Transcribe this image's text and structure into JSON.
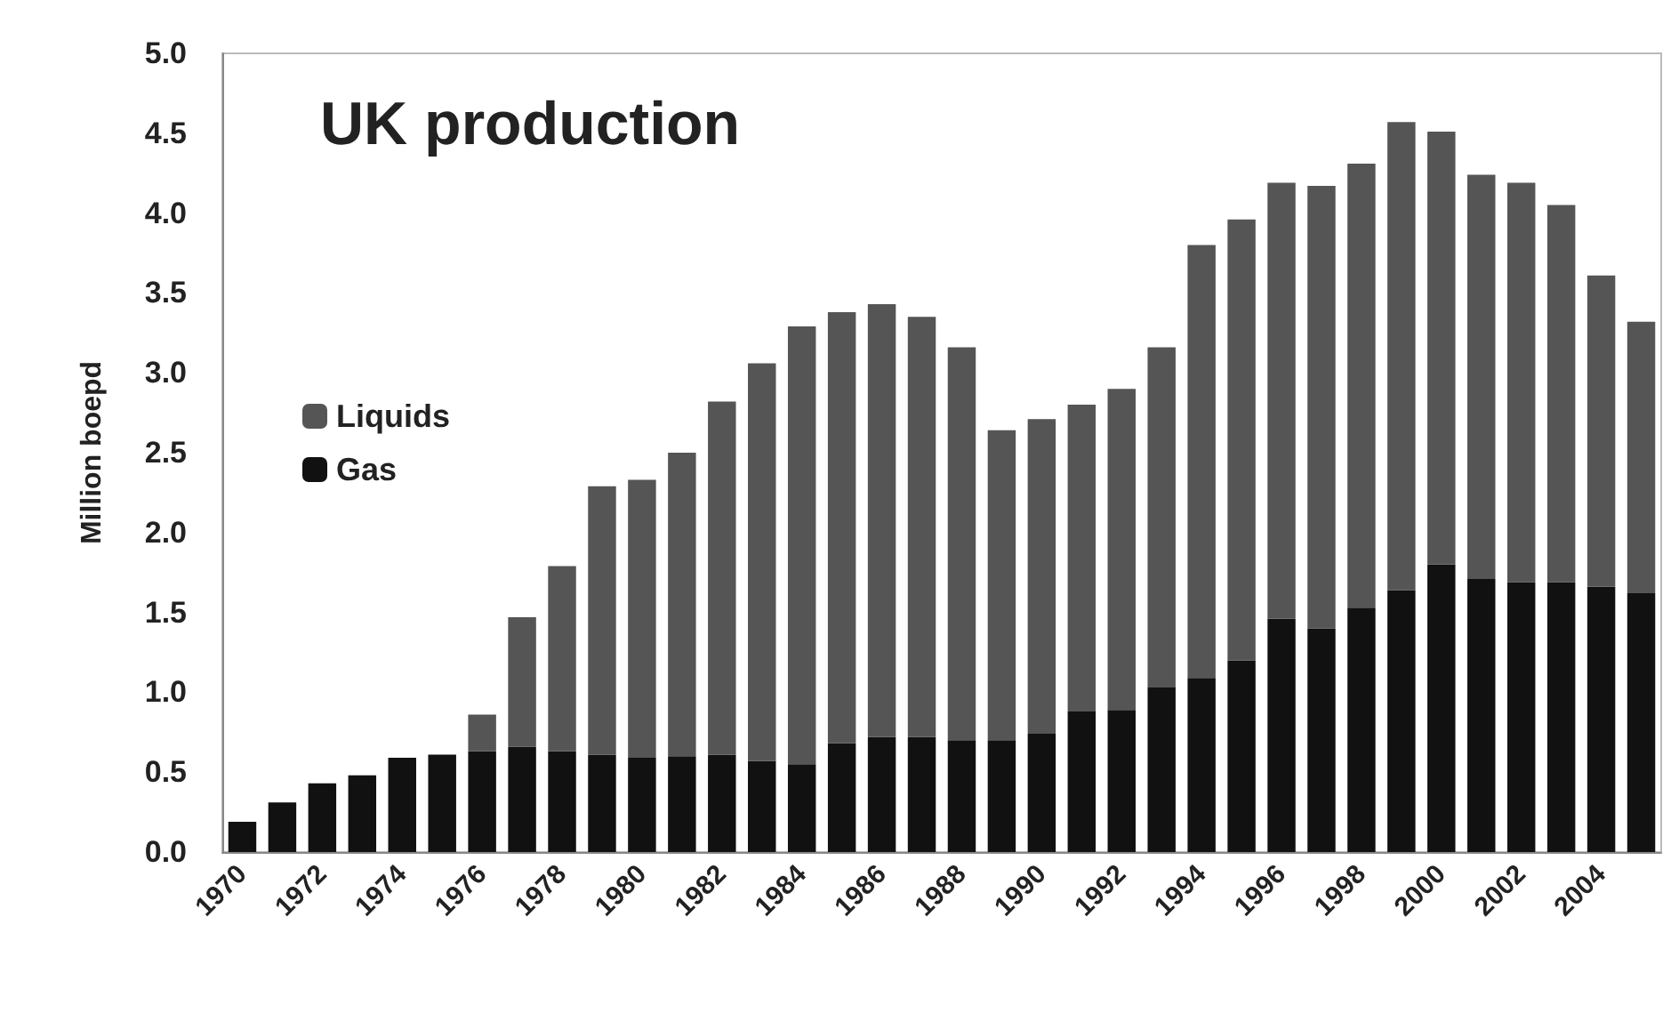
{
  "chart_data": {
    "type": "bar",
    "title": "UK production",
    "ylabel": "Million boepd",
    "categories": [
      "1970",
      null,
      "1972",
      null,
      "1974",
      null,
      "1976",
      null,
      "1978",
      null,
      "1980",
      null,
      "1982",
      null,
      "1984",
      null,
      "1986",
      null,
      "1988",
      null,
      "1990",
      null,
      "1992",
      null,
      "1994",
      null,
      "1996",
      null,
      "1998",
      null,
      "2000",
      null,
      "2002",
      null,
      "2004",
      null
    ],
    "stacked": true,
    "series": [
      {
        "name": "Gas",
        "color": "#111111",
        "values": [
          0.19,
          0.31,
          0.43,
          0.48,
          0.59,
          0.61,
          0.63,
          0.66,
          0.63,
          0.61,
          0.59,
          0.6,
          0.61,
          0.57,
          0.55,
          0.68,
          0.72,
          0.72,
          0.7,
          0.7,
          0.74,
          0.88,
          0.89,
          1.03,
          1.09,
          1.2,
          1.46,
          1.4,
          1.53,
          1.64,
          1.8,
          1.71,
          1.69,
          1.69,
          1.66,
          1.62
        ]
      },
      {
        "name": "Liquids",
        "color": "#555555",
        "values": [
          0,
          0,
          0,
          0,
          0,
          0,
          0.23,
          0.81,
          1.16,
          1.68,
          1.74,
          1.9,
          2.21,
          2.49,
          2.74,
          2.7,
          2.71,
          2.63,
          2.46,
          1.94,
          1.97,
          1.92,
          2.01,
          2.13,
          2.71,
          2.76,
          2.73,
          2.77,
          2.78,
          2.93,
          2.71,
          2.53,
          2.5,
          2.36,
          1.95,
          1.7
        ]
      }
    ],
    "ylim": [
      0,
      5
    ],
    "yticks": [
      {
        "value": 0,
        "label": "0.0"
      },
      {
        "value": 0.5,
        "label": "0.5"
      },
      {
        "value": 1,
        "label": "1.0"
      },
      {
        "value": 1.5,
        "label": "1.5"
      },
      {
        "value": 2,
        "label": "2.0"
      },
      {
        "value": 2.5,
        "label": "2.5"
      },
      {
        "value": 3,
        "label": "3.0"
      },
      {
        "value": 3.5,
        "label": "3.5"
      },
      {
        "value": 4,
        "label": "4.0"
      },
      {
        "value": 4.5,
        "label": "4.5"
      },
      {
        "value": 5,
        "label": "5.0"
      }
    ],
    "grid": false,
    "legend": "left"
  }
}
